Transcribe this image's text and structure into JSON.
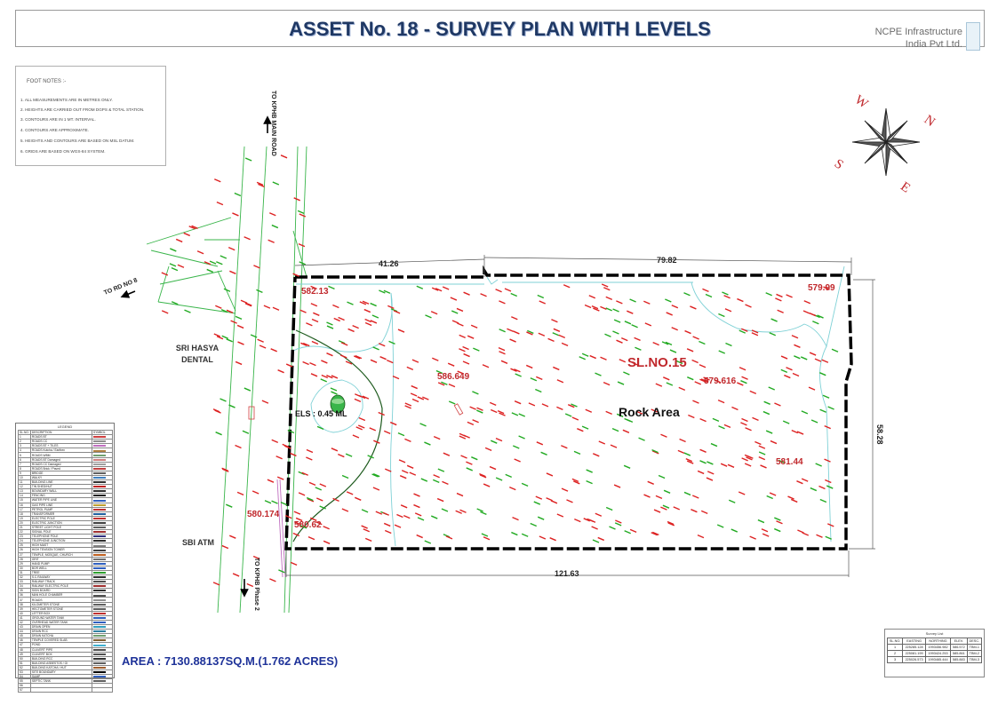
{
  "header": {
    "title": "ASSET No. 18 - SURVEY PLAN WITH LEVELS",
    "company_line1": "NCPE Infrastructure",
    "company_line2": "India  Pvt Ltd."
  },
  "footnotes": {
    "title": "FOOT NOTES :-",
    "items": [
      "1.  ALL MEASUREMENTS ARE IN METRES ONLY.",
      "2.  HEIGHTS ARE CARRIED OUT FROM DGPS & TOTAL STATION.",
      "3.  CONTOURS ARE IN 1  MT. INTERVAL.",
      "4.  CONTOURS ARE APPROXIMATE.",
      "5.  HEIGHTS AND CONTOURS ARE BASED ON MSL DATUM.",
      "6.  GRIDS ARE BASED ON WGS-84 SYSTEM."
    ]
  },
  "compass": {
    "n": "N",
    "e": "E",
    "s": "S",
    "w": "W"
  },
  "road_labels": {
    "kphb_main": "TO KPHB MAIN ROAD",
    "rd_no8": "TO RD NO 8",
    "kphb_phase2": "TO KPHB Phase 2"
  },
  "places": {
    "sri_hasya_line1": "SRI HASYA",
    "sri_hasya_line2": "DENTAL",
    "sbi_atm": "SBI ATM",
    "els": "ELS : 0.45 ML",
    "rock_area": "Rock Area",
    "sl_no": "SL.NO.15"
  },
  "dimensions": {
    "top_left": "41.26",
    "top_right": "79.82",
    "right": "58.28",
    "bottom": "121.63"
  },
  "levels": {
    "l1": "582.13",
    "l2": "579.99",
    "l3": "586.649",
    "l4": "579.616",
    "l5": "581.44",
    "l6": "580.174",
    "l7": "580.62"
  },
  "legend": {
    "title": "LEGEND",
    "header": [
      "SL.NO.",
      "DESCRIPTION",
      "SYMBOL"
    ],
    "rows": [
      [
        "1",
        "ROADS BT",
        "#d04040"
      ],
      [
        "2",
        "ROADS CC",
        "#909090"
      ],
      [
        "3",
        "ROADS BT + TILES",
        "#c070c0"
      ],
      [
        "4",
        "ROADS Kutcha / Earthen",
        "#b08040"
      ],
      [
        "5",
        "ROADS WBM",
        "#70a070"
      ],
      [
        "6",
        "ROADS BT Damaged",
        "#d08080"
      ],
      [
        "7",
        "ROADS CC Damaged",
        "#a0a0a0"
      ],
      [
        "8",
        "ROADS Brick / Paved",
        "#c04040"
      ],
      [
        "9",
        "BRIDGE",
        "#606060"
      ],
      [
        "10",
        "WALKY",
        "#4080c0"
      ],
      [
        "11",
        "BUILDING LINE",
        "#303030"
      ],
      [
        "12",
        "TIN SHED/HUT",
        "#c02020"
      ],
      [
        "13",
        "BOUNDARY WALL",
        "#303030"
      ],
      [
        "14",
        "FENCING",
        "#202020"
      ],
      [
        "15",
        "WATER PIPE LINE",
        "#3060c0"
      ],
      [
        "16",
        "GAS PIPE LINE",
        "#c0a030"
      ],
      [
        "17",
        "PETROL PUMP",
        "#c03030"
      ],
      [
        "18",
        "TRANSFORMER",
        "#2060a0"
      ],
      [
        "19",
        "ELECTRIC POLE",
        "#c03030"
      ],
      [
        "20",
        "ELECTRIC JUNCTION",
        "#404040"
      ],
      [
        "21",
        "STREET LIGHT POLE",
        "#606060"
      ],
      [
        "22",
        "SIGNAL POLE",
        "#a03030"
      ],
      [
        "23",
        "TELEPHONE POLE",
        "#303080"
      ],
      [
        "24",
        "TELEPHONE JUNCTION",
        "#303030"
      ],
      [
        "25",
        "HIGH MAST",
        "#808080"
      ],
      [
        "26",
        "HIGH TENSION TOWER",
        "#404040"
      ],
      [
        "27",
        "TEMPLE, MOSQUE, CHURCH",
        "#c06020"
      ],
      [
        "28",
        "GRIT",
        "#707070"
      ],
      [
        "29",
        "HAND PUMP",
        "#3060c0"
      ],
      [
        "30",
        "BOR WELL",
        "#3060c0"
      ],
      [
        "31",
        "TREE",
        "#30a030"
      ],
      [
        "32",
        "S.C.RAILWAY",
        "#303030"
      ],
      [
        "33",
        "RAILWAY TRACK",
        "#505050"
      ],
      [
        "34",
        "RAILWAY ELECTRIC POLE",
        "#a03030"
      ],
      [
        "35",
        "SIGN BOARD",
        "#303030"
      ],
      [
        "36",
        "MAN HOLE CHAMBER",
        "#505050"
      ],
      [
        "37",
        "ROADS",
        "#909090"
      ],
      [
        "38",
        "KILOMETER STONE",
        "#606060"
      ],
      [
        "39",
        "HECTOMETER STONE",
        "#606060"
      ],
      [
        "40",
        "LETTER BOX",
        "#c03030"
      ],
      [
        "41",
        "GROUND WATER TANK",
        "#3060c0"
      ],
      [
        "42",
        "OVERHEAD WATER TANK",
        "#3060c0"
      ],
      [
        "43",
        "DRAIN OPEN",
        "#30a0c0"
      ],
      [
        "44",
        "DRAIN RCC",
        "#3080a0"
      ],
      [
        "45",
        "DRAIN KATCHA",
        "#70a070"
      ],
      [
        "46",
        "TEMPLE COVERED SLAB",
        "#806030"
      ],
      [
        "47",
        "POND",
        "#40b0d0"
      ],
      [
        "48",
        "CULVERT PIPE",
        "#505050"
      ],
      [
        "49",
        "CULVERT BOX",
        "#505050"
      ],
      [
        "50",
        "BUILDING RCC",
        "#303030"
      ],
      [
        "51",
        "BUILDING ASBESTOS / GI",
        "#606060"
      ],
      [
        "52",
        "BUILDING KATCHA / HUT",
        "#a06030"
      ],
      [
        "53",
        "SITE BOUNDARY",
        "#000000"
      ],
      [
        "54",
        "SUMP",
        "#3060c0"
      ],
      [
        "55",
        "SEPTIC TANK",
        "#606060"
      ],
      [
        "56",
        "",
        "#ffffff"
      ],
      [
        "57",
        "",
        "#ffffff"
      ]
    ]
  },
  "area_text": "AREA : 7130.88137SQ.M.(1.762 ACRES)",
  "coord_table": {
    "title": "Survey List",
    "header": [
      "SL.NO.",
      "EASTING",
      "NORTHING",
      "ELEV.",
      "DESC."
    ],
    "rows": [
      [
        "1",
        "225285.128",
        "1993456.982",
        "586.572",
        "TBM-1"
      ],
      [
        "2",
        "225081.199",
        "1993424.253",
        "585.861",
        "TBM-2"
      ],
      [
        "3",
        "225026.573",
        "1993465.444",
        "585.883",
        "TBM-3"
      ]
    ]
  },
  "colors": {
    "title_blue": "#1f3864",
    "level_red": "#c0282c",
    "area_blue": "#1f3399",
    "road_green": "#39b54a",
    "contour_cyan": "#7fd1d6",
    "boundary_black": "#000000"
  }
}
